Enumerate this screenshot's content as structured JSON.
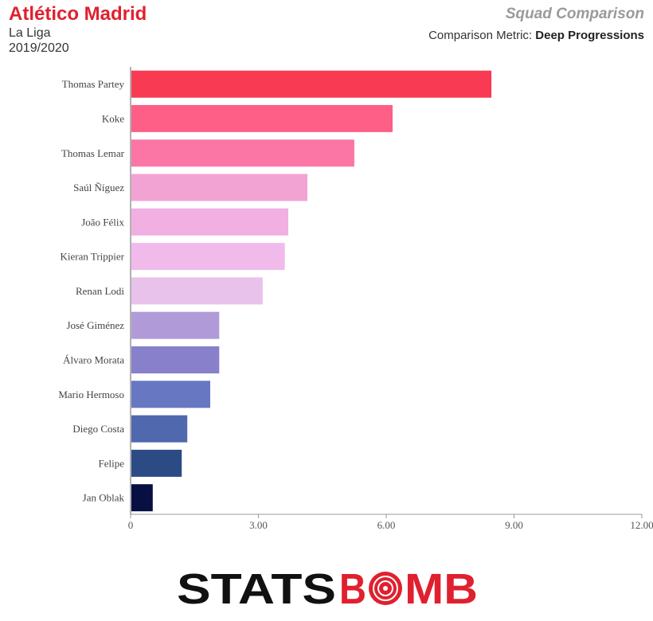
{
  "header": {
    "team": "Atlético Madrid",
    "competition": "La Liga",
    "season": "2019/2020",
    "title": "Squad Comparison",
    "metric_label": "Comparison Metric:",
    "metric_value": "Deep Progressions"
  },
  "brand": {
    "part1": "STATS",
    "part2": "B",
    "part3": "MB",
    "red": "#e0202f",
    "black": "#111111"
  },
  "chart_data": {
    "type": "bar",
    "orientation": "horizontal",
    "categories": [
      "Thomas Partey",
      "Koke",
      "Thomas Lemar",
      "Saúl Ñíguez",
      "João Félix",
      "Kieran Trippier",
      "Renan Lodi",
      "José Giménez",
      "Álvaro Morata",
      "Mario Hermoso",
      "Diego Costa",
      "Felipe",
      "Jan Oblak"
    ],
    "values": [
      8.47,
      6.15,
      5.25,
      4.15,
      3.7,
      3.62,
      3.1,
      2.08,
      2.08,
      1.87,
      1.33,
      1.2,
      0.52
    ],
    "colors": [
      "#f83b52",
      "#fd5f86",
      "#fb75a5",
      "#f3a2d4",
      "#f1b0e1",
      "#f0bbea",
      "#e9c2ec",
      "#b09bd8",
      "#8880cb",
      "#6877c2",
      "#5068ad",
      "#2c4b84",
      "#080f42"
    ],
    "xlim": [
      0,
      12
    ],
    "xticks": [
      0,
      3,
      6,
      9,
      12
    ],
    "xtick_labels": [
      "0",
      "3.00",
      "6.00",
      "9.00",
      "12.00"
    ],
    "grid": false
  }
}
